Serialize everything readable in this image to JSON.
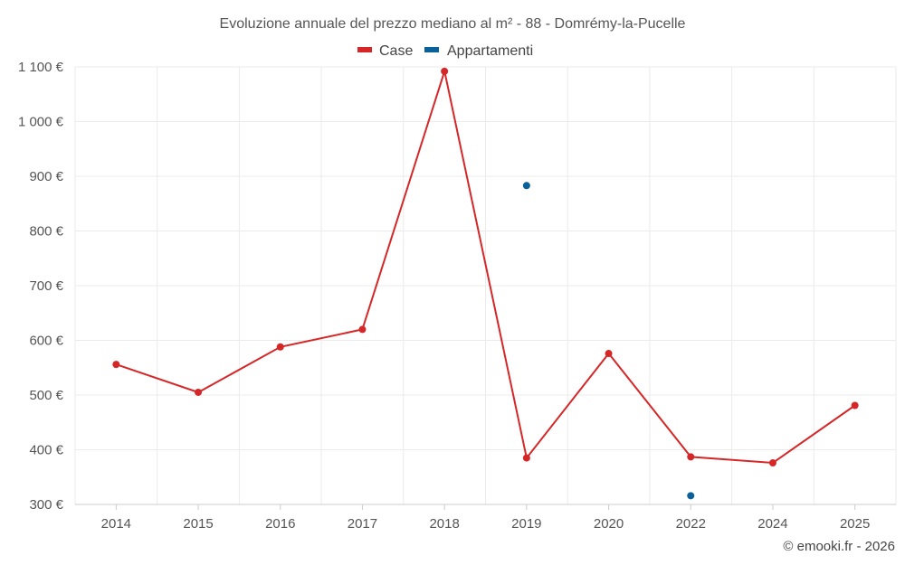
{
  "chart_data": {
    "type": "line",
    "title": "Evoluzione annuale del prezzo mediano al m² - 88 - Domrémy-la-Pucelle",
    "categories": [
      "2014",
      "2015",
      "2016",
      "2017",
      "2018",
      "2019",
      "2020",
      "2022",
      "2024",
      "2025"
    ],
    "ylim": [
      300,
      1100
    ],
    "yticks": [
      300,
      400,
      500,
      600,
      700,
      800,
      900,
      1000,
      1100
    ],
    "ytick_labels": [
      "300 €",
      "400 €",
      "500 €",
      "600 €",
      "700 €",
      "800 €",
      "900 €",
      "1 000 €",
      "1 100 €"
    ],
    "xlabel": "",
    "ylabel": "",
    "grid": true,
    "legend_position": "top-center",
    "series": [
      {
        "name": "Case",
        "color": "#d62728",
        "values": [
          556,
          505,
          588,
          620,
          1092,
          385,
          576,
          387,
          376,
          481
        ]
      },
      {
        "name": "Appartamenti",
        "color": "#0a6099",
        "values": [
          null,
          null,
          null,
          null,
          null,
          883,
          null,
          316,
          null,
          null
        ]
      }
    ]
  },
  "footer": {
    "credit": "© emooki.fr - 2026"
  }
}
